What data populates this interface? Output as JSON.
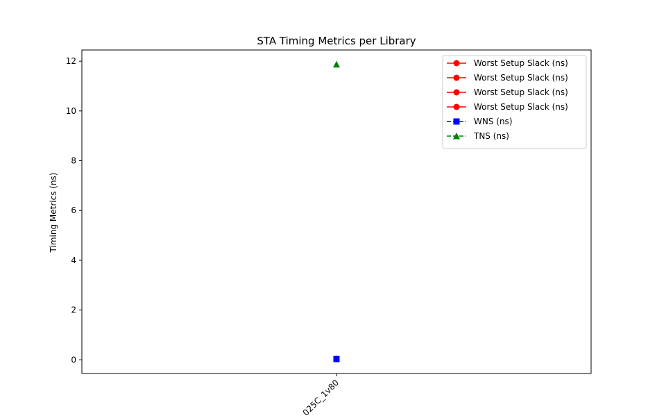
{
  "chart_data": {
    "type": "line",
    "title": "STA Timing Metrics per Library",
    "xlabel": "",
    "ylabel": "Timing Metrics (ns)",
    "categories": [
      "025C_1v80"
    ],
    "ylim": [
      -0.55,
      12.45
    ],
    "yticks": [
      0,
      2,
      4,
      6,
      8,
      10,
      12
    ],
    "grid": false,
    "legend_position": "top-right",
    "series": [
      {
        "name": "Worst Setup Slack (ns)",
        "values": [
          0.03
        ],
        "color": "#ff0000",
        "marker": "circle",
        "linestyle": "solid"
      },
      {
        "name": "Worst Setup Slack (ns)",
        "values": [
          0.03
        ],
        "color": "#ff0000",
        "marker": "circle",
        "linestyle": "solid"
      },
      {
        "name": "Worst Setup Slack (ns)",
        "values": [
          0.03
        ],
        "color": "#ff0000",
        "marker": "circle",
        "linestyle": "solid"
      },
      {
        "name": "Worst Setup Slack (ns)",
        "values": [
          0.03
        ],
        "color": "#ff0000",
        "marker": "circle",
        "linestyle": "solid"
      },
      {
        "name": "WNS (ns)",
        "values": [
          0.03
        ],
        "color": "#0000ff",
        "marker": "square",
        "linestyle": "dashed"
      },
      {
        "name": "TNS (ns)",
        "values": [
          11.87
        ],
        "color": "#008000",
        "marker": "triangle",
        "linestyle": "dashed"
      }
    ]
  }
}
